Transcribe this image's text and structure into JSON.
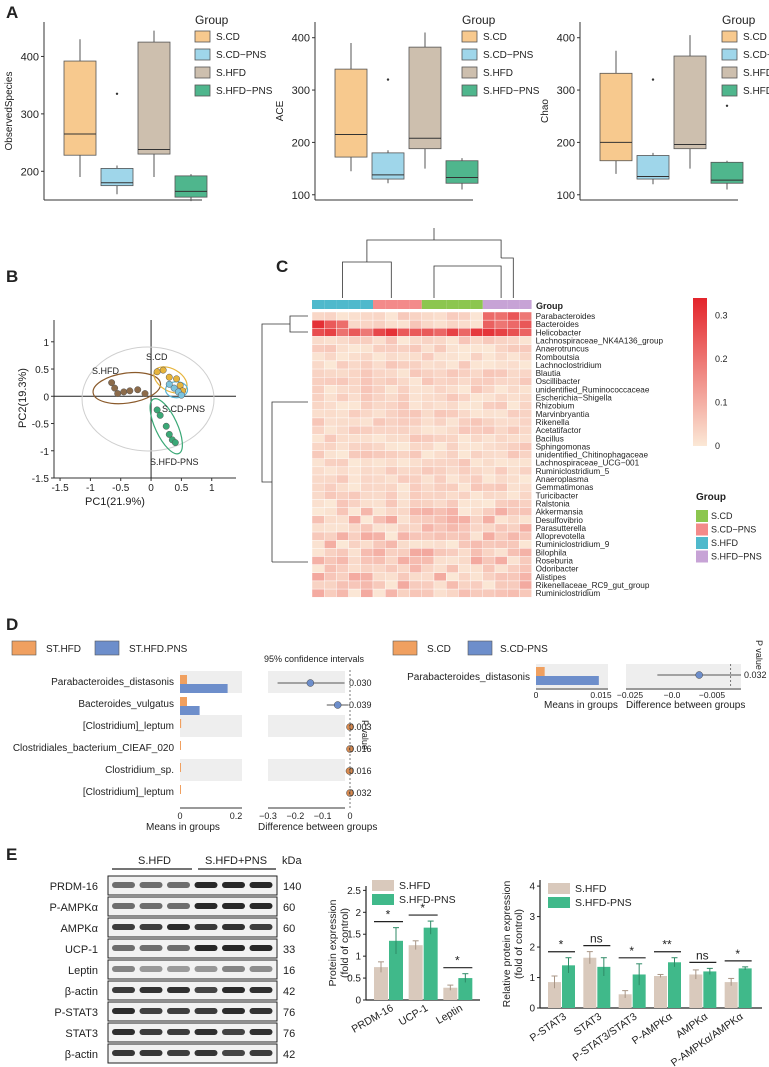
{
  "colors": {
    "cd": "#f7c98e",
    "cdpns": "#9fd6ea",
    "hfd": "#cdbfae",
    "hfdpns": "#4fb68d",
    "gray": "#eeeeee",
    "heat_low": "#fbe8d6",
    "heat_high": "#e3242b",
    "bar_hfd": "#d9c9bc",
    "bar_pns": "#40b98a",
    "orange": "#f0a060",
    "blue": "#6d8ecb"
  },
  "panels": {
    "A": "A",
    "B": "B",
    "C": "C",
    "D": "D",
    "E": "E"
  },
  "panel_a": {
    "legend_title": "Group",
    "groups": [
      "S.CD",
      "S.CD−PNS",
      "S.HFD",
      "S.HFD−PNS"
    ],
    "charts": [
      {
        "ylabel": "ObservedSpecies",
        "ticks": [
          200,
          300,
          400
        ],
        "ylim": [
          150,
          460
        ],
        "boxes": [
          {
            "q1": 228,
            "med": 265,
            "q3": 392,
            "lo": 190,
            "hi": 430
          },
          {
            "q1": 175,
            "med": 180,
            "q3": 205,
            "lo": 160,
            "hi": 210
          },
          {
            "q1": 230,
            "med": 238,
            "q3": 425,
            "lo": 190,
            "hi": 445
          },
          {
            "q1": 155,
            "med": 165,
            "q3": 192,
            "lo": 148,
            "hi": 195
          }
        ],
        "outliers": [
          {
            "g": 1,
            "v": 335
          }
        ]
      },
      {
        "ylabel": "ACE",
        "ticks": [
          100,
          200,
          300,
          400
        ],
        "ylim": [
          90,
          430
        ],
        "boxes": [
          {
            "q1": 172,
            "med": 215,
            "q3": 340,
            "lo": 145,
            "hi": 390
          },
          {
            "q1": 130,
            "med": 138,
            "q3": 180,
            "lo": 122,
            "hi": 185
          },
          {
            "q1": 188,
            "med": 208,
            "q3": 382,
            "lo": 150,
            "hi": 410
          },
          {
            "q1": 122,
            "med": 133,
            "q3": 165,
            "lo": 110,
            "hi": 170
          }
        ],
        "outliers": [
          {
            "g": 1,
            "v": 320
          }
        ]
      },
      {
        "ylabel": "Chao",
        "ticks": [
          100,
          200,
          300,
          400
        ],
        "ylim": [
          90,
          430
        ],
        "boxes": [
          {
            "q1": 165,
            "med": 200,
            "q3": 332,
            "lo": 140,
            "hi": 375
          },
          {
            "q1": 130,
            "med": 135,
            "q3": 175,
            "lo": 120,
            "hi": 180
          },
          {
            "q1": 188,
            "med": 196,
            "q3": 365,
            "lo": 150,
            "hi": 405
          },
          {
            "q1": 122,
            "med": 128,
            "q3": 162,
            "lo": 110,
            "hi": 165
          }
        ],
        "outliers": [
          {
            "g": 1,
            "v": 320
          },
          {
            "g": 3,
            "v": 270
          }
        ]
      }
    ]
  },
  "panel_b": {
    "xlabel": "PC1(21.9%)",
    "ylabel": "PC2(19.3%)",
    "xticks": [
      -1.5,
      -1,
      -0.5,
      0,
      0.5,
      1
    ],
    "yticks": [
      -1.5,
      -1,
      -0.5,
      0,
      0.5,
      1
    ],
    "labels": [
      "S.CD",
      "S.HFD",
      "S.CD-PNS",
      "S.HFD-PNS"
    ],
    "points": {
      "cd": [
        [
          0.1,
          0.45
        ],
        [
          0.2,
          0.48
        ],
        [
          0.3,
          0.35
        ],
        [
          0.42,
          0.32
        ],
        [
          0.48,
          0.2
        ],
        [
          0.52,
          0.1
        ]
      ],
      "hfd": [
        [
          -0.65,
          0.25
        ],
        [
          -0.6,
          0.15
        ],
        [
          -0.55,
          0.05
        ],
        [
          -0.45,
          0.08
        ],
        [
          -0.35,
          0.1
        ],
        [
          -0.22,
          0.12
        ],
        [
          -0.1,
          0.05
        ]
      ],
      "cdpns": [
        [
          0.3,
          0.22
        ],
        [
          0.38,
          0.15
        ],
        [
          0.45,
          0.08
        ],
        [
          0.5,
          0.02
        ]
      ],
      "hfdpns": [
        [
          0.1,
          -0.25
        ],
        [
          0.15,
          -0.35
        ],
        [
          0.25,
          -0.55
        ],
        [
          0.3,
          -0.7
        ],
        [
          0.35,
          -0.8
        ],
        [
          0.4,
          -0.85
        ]
      ]
    }
  },
  "panel_c": {
    "legend_label": "Group",
    "scale_ticks": [
      "0.3",
      "0.2",
      "0.1",
      "0"
    ],
    "group_legend": [
      "S.CD",
      "S.CD−PNS",
      "S.HFD",
      "S.HFD−PNS"
    ],
    "taxa": [
      "Parabacteroides",
      "Bacteroides",
      "Helicobacter",
      "Lachnospiraceae_NK4A136_group",
      "Anaerotruncus",
      "Romboutsia",
      "Lachnoclostridium",
      "Blautia",
      "Oscillibacter",
      "unidentified_Ruminococcaceae",
      "Escherichia−Shigella",
      "Rhizobium",
      "Marvinbryantia",
      "Rikenella",
      "Acetatifactor",
      "Bacillus",
      "Sphingomonas",
      "unidentified_Chitinophagaceae",
      "Lachnospiraceae_UCG−001",
      "Ruminiclostridium_5",
      "Anaeroplasma",
      "Gemmatimonas",
      "Turicibacter",
      "Ralstonia",
      "Akkermansia",
      "Desulfovibrio",
      "Parasutterella",
      "Alloprevotella",
      "Ruminiclostridium_9",
      "Bilophila",
      "Roseburia",
      "Odoribacter",
      "Alistipes",
      "Rikenellaceae_RC9_gut_group",
      "Ruminiclostridium"
    ]
  },
  "panel_d": {
    "left": {
      "legend": [
        "ST.HFD",
        "ST.HFD.PNS"
      ],
      "ci_title": "95% confidence intervals",
      "rows": [
        {
          "name": "Parabacteroides_distasonis",
          "a": 0.025,
          "b": 0.17,
          "diff": -0.145,
          "lo": -0.265,
          "hi": -0.02,
          "p": "0.030"
        },
        {
          "name": "Bacteroides_vulgatus",
          "a": 0.025,
          "b": 0.07,
          "diff": -0.045,
          "lo": -0.085,
          "hi": -0.005,
          "p": "0.039"
        },
        {
          "name": "[Clostridium]_leptum",
          "a": 0.004,
          "b": 0.0,
          "diff": 0.0,
          "lo": -0.003,
          "hi": 0.003,
          "p": "0.003"
        },
        {
          "name": "Clostridiales_bacterium_CIEAF_020",
          "a": 0.003,
          "b": 0.0,
          "diff": 0.0,
          "lo": -0.002,
          "hi": 0.002,
          "p": "0.016"
        },
        {
          "name": "Clostridium_sp.",
          "a": 0.001,
          "b": 0.0,
          "diff": -0.002,
          "lo": -0.004,
          "hi": 0.0,
          "p": "0.016"
        },
        {
          "name": "[Clostridium]_leptum",
          "a": 0.001,
          "b": 0.0,
          "diff": 0.0,
          "lo": -0.001,
          "hi": 0.001,
          "p": "0.032"
        }
      ],
      "xlabel_means": "Means in groups",
      "xlabel_diff": "Difference between groups",
      "means_ticks": [
        "0",
        "0.2"
      ],
      "diff_ticks": [
        "−0.3",
        "−0.2",
        "−0.1",
        "0"
      ],
      "pvalue_label": "P value"
    },
    "right": {
      "legend": [
        "S.CD",
        "S.CD-PNS"
      ],
      "row": {
        "name": "Parabacteroides_distasonis",
        "a": 0.002,
        "b": 0.0145,
        "diff": -0.009,
        "lo": -0.021,
        "hi": 0.003,
        "p": "0.032"
      },
      "means_ticks": [
        "0",
        "0.015"
      ],
      "diff_ticks": [
        "−0.025",
        "−0.0",
        "−0.005"
      ],
      "xlabel_means": "Means in groups",
      "xlabel_diff": "Difference between groups",
      "pvalue_label": "P value"
    }
  },
  "panel_e": {
    "blot": {
      "group_left": "S.HFD",
      "group_right": "S.HFD+PNS",
      "kda_label": "kDa",
      "rows": [
        {
          "name": "PRDM-16",
          "kda": "140"
        },
        {
          "name": "P-AMPKα",
          "kda": "60"
        },
        {
          "name": "AMPKα",
          "kda": "60"
        },
        {
          "name": "UCP-1",
          "kda": "33"
        },
        {
          "name": "Leptin",
          "kda": "16"
        },
        {
          "name": "β-actin",
          "kda": "42"
        },
        {
          "name": "P-STAT3",
          "kda": "76"
        },
        {
          "name": "STAT3",
          "kda": "76"
        },
        {
          "name": "β-actin",
          "kda": "42"
        }
      ]
    },
    "chart1": {
      "type": "bar",
      "ylabel": "Protein expression\n(fold of control)",
      "yticks": [
        0,
        0.5,
        1,
        1.5,
        2,
        2.5
      ],
      "legend": [
        "S.HFD",
        "S.HFD-PNS"
      ],
      "categories": [
        "PRDM-16",
        "UCP-1",
        "Leptin"
      ],
      "series": [
        {
          "name": "S.HFD",
          "values": [
            0.75,
            1.25,
            0.28
          ],
          "err": [
            0.12,
            0.1,
            0.06
          ]
        },
        {
          "name": "S.HFD-PNS",
          "values": [
            1.35,
            1.65,
            0.5
          ],
          "err": [
            0.3,
            0.15,
            0.1
          ]
        }
      ],
      "sig": [
        "*",
        "*",
        "*"
      ]
    },
    "chart2": {
      "type": "bar",
      "ylabel": "Relative  protein expression\n(fold of control)",
      "yticks": [
        0,
        1,
        2,
        3,
        4
      ],
      "legend": [
        "S.HFD",
        "S.HFD-PNS"
      ],
      "categories": [
        "P-STAT3",
        "STAT3",
        "P-STAT3/STAT3",
        "P-AMPKα",
        "AMPKα",
        "P-AMPKα/AMPKα"
      ],
      "series": [
        {
          "name": "S.HFD",
          "values": [
            0.85,
            1.65,
            0.45,
            1.05,
            1.1,
            0.85
          ],
          "err": [
            0.2,
            0.2,
            0.12,
            0.05,
            0.15,
            0.12
          ]
        },
        {
          "name": "S.HFD-PNS",
          "values": [
            1.4,
            1.35,
            1.1,
            1.5,
            1.2,
            1.3
          ],
          "err": [
            0.25,
            0.3,
            0.35,
            0.15,
            0.1,
            0.05
          ]
        }
      ],
      "sig": [
        "*",
        "ns",
        "*",
        "**",
        "ns",
        "*"
      ]
    }
  }
}
